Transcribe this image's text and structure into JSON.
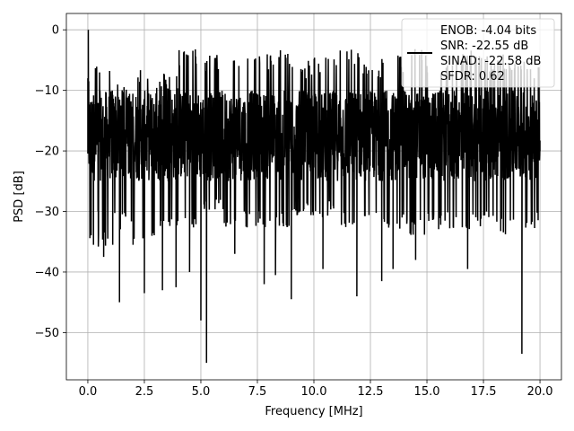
{
  "chart_data": {
    "type": "line",
    "xlabel": "Frequency [MHz]",
    "ylabel": "PSD [dB]",
    "xlim": [
      -0.95,
      20.95
    ],
    "ylim": [
      -57.8,
      2.7
    ],
    "x_ticks": [
      0.0,
      2.5,
      5.0,
      7.5,
      10.0,
      12.5,
      15.0,
      17.5,
      20.0
    ],
    "x_tick_labels": [
      "0.0",
      "2.5",
      "5.0",
      "7.5",
      "10.0",
      "12.5",
      "15.0",
      "17.5",
      "20.0"
    ],
    "y_ticks": [
      0,
      -10,
      -20,
      -30,
      -40,
      -50
    ],
    "y_tick_labels": [
      "0",
      "−10",
      "−20",
      "−30",
      "−40",
      "−50"
    ],
    "grid": true,
    "legend_position": "top-right",
    "legend": [
      "ENOB: -4.04 bits",
      "SNR: -22.55 dB",
      "SINAD: -22.58 dB",
      "SFDR: 0.62"
    ],
    "line_color": "#000000",
    "series": [
      {
        "x": [
          0.0,
          0.02,
          0.04,
          0.06,
          0.08,
          0.1,
          0.15,
          0.25,
          0.45,
          0.7,
          1.1,
          1.4,
          2.0,
          2.5,
          3.3,
          3.9,
          4.5,
          5.0,
          5.25,
          6.5,
          7.8,
          8.3,
          9.0,
          10.4,
          11.9,
          13.0,
          13.5,
          14.5,
          16.8,
          19.2,
          20.0
        ],
        "y": [
          -8.0,
          0.0,
          -8.5,
          -15.0,
          -20.0,
          -23.5,
          -18.0,
          -35.5,
          -30.0,
          -37.5,
          -35.5,
          -45.0,
          -35.5,
          -43.5,
          -43.0,
          -42.5,
          -40.0,
          -48.0,
          -55.0,
          -37.0,
          -42.0,
          -40.5,
          -44.5,
          -39.5,
          -44.0,
          -41.5,
          -39.5,
          -38.0,
          -39.5,
          -53.5,
          -20.0
        ],
        "upper_envelope": [
          -8,
          -12,
          -9,
          -10,
          -6,
          -7,
          -6,
          -7,
          -6,
          -8,
          -7,
          -6,
          -8,
          -7,
          -6,
          -8,
          -6,
          -7,
          -7,
          -8
        ],
        "lower_envelope": [
          -33,
          -30,
          -32,
          -30,
          -31,
          -28,
          -30,
          -30,
          -30,
          -28,
          -28,
          -30,
          -28,
          -30,
          -31,
          -30,
          -30,
          -30,
          -31,
          -30
        ],
        "typical_band": [
          -25,
          -10
        ]
      }
    ]
  }
}
